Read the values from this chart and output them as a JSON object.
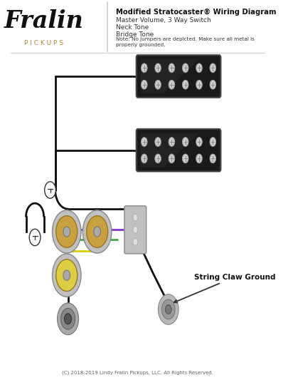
{
  "title": "Modified Stratocaster® Wiring Diagram",
  "subtitle_lines": [
    "Master Volume, 3 Way Switch",
    "Neck Tone",
    "Bridge Tone"
  ],
  "note": "Note: No jumpers are depicted. Make sure all metal is\nproperly grounded.",
  "copyright": "(C) 2018-2019 Lindy Fralin Pickups, LLC. All Rights Reserved.",
  "logo_fralin": "Fralin",
  "logo_pickups": "P I C K U P S",
  "bg_color": "#ffffff",
  "pickup_body_color": "#1a1a1a",
  "wire_black": "#111111",
  "wire_green": "#44aa44",
  "wire_purple": "#8833cc",
  "wire_yellow": "#ddcc00",
  "pot_body_color": "#c8a040",
  "string_claw_label": "String Claw Ground"
}
